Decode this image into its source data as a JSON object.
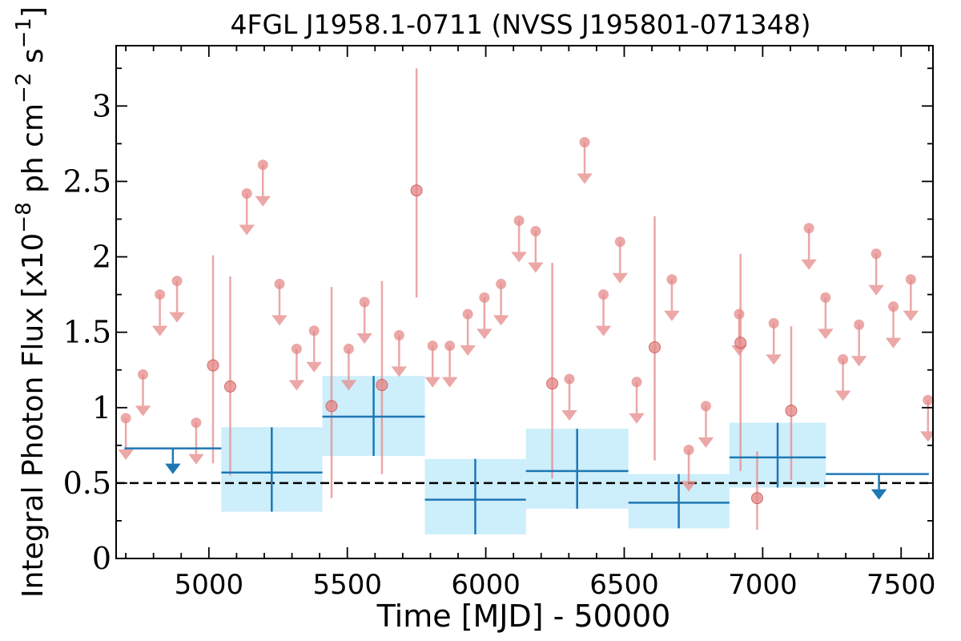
{
  "chart_data": {
    "type": "scatter",
    "title": "4FGL J1958.1-0711 (NVSS J195801-071348)",
    "xlabel": "Time [MJD] - 50000",
    "ylabel_main": "Integral Photon Flux [x10",
    "ylabel_exp1": "−8",
    "ylabel_mid": " ph cm",
    "ylabel_exp2": "−2",
    "ylabel_mid2": " s",
    "ylabel_exp3": "−1",
    "ylabel_end": "]",
    "xlim": [
      4665,
      7615
    ],
    "ylim": [
      0,
      3.4
    ],
    "x_ticks": [
      5000,
      5500,
      6000,
      6500,
      7000,
      7500
    ],
    "y_ticks": [
      0,
      0.5,
      1,
      1.5,
      2,
      2.5,
      3
    ],
    "y_tick_labels": [
      "0",
      "0.5",
      "1",
      "1.5",
      "2",
      "2.5",
      "3"
    ],
    "reference_line_y": 0.5,
    "colors": {
      "short_bins": "#e58a8a",
      "long_bins": "#1f77b4",
      "long_bin_box": "#cdeefb",
      "reference_line": "#000000"
    },
    "series": [
      {
        "kind": "upper_limits_short",
        "points": [
          {
            "x": 4700,
            "y": 0.93
          },
          {
            "x": 4762,
            "y": 1.22
          },
          {
            "x": 4823,
            "y": 1.75
          },
          {
            "x": 4885,
            "y": 1.84
          },
          {
            "x": 4954,
            "y": 0.9
          },
          {
            "x": 5137,
            "y": 2.42
          },
          {
            "x": 5195,
            "y": 2.61
          },
          {
            "x": 5255,
            "y": 1.82
          },
          {
            "x": 5317,
            "y": 1.39
          },
          {
            "x": 5380,
            "y": 1.51
          },
          {
            "x": 5505,
            "y": 1.39
          },
          {
            "x": 5562,
            "y": 1.7
          },
          {
            "x": 5687,
            "y": 1.48
          },
          {
            "x": 5808,
            "y": 1.41
          },
          {
            "x": 5870,
            "y": 1.41
          },
          {
            "x": 5935,
            "y": 1.62
          },
          {
            "x": 5995,
            "y": 1.73
          },
          {
            "x": 6055,
            "y": 1.82
          },
          {
            "x": 6120,
            "y": 2.24
          },
          {
            "x": 6180,
            "y": 2.17
          },
          {
            "x": 6302,
            "y": 1.19
          },
          {
            "x": 6357,
            "y": 2.76
          },
          {
            "x": 6425,
            "y": 1.75
          },
          {
            "x": 6485,
            "y": 2.1
          },
          {
            "x": 6545,
            "y": 1.17
          },
          {
            "x": 6672,
            "y": 1.85
          },
          {
            "x": 6733,
            "y": 0.72
          },
          {
            "x": 6795,
            "y": 1.01
          },
          {
            "x": 6915,
            "y": 1.62
          },
          {
            "x": 7040,
            "y": 1.56
          },
          {
            "x": 7167,
            "y": 2.19
          },
          {
            "x": 7227,
            "y": 1.73
          },
          {
            "x": 7290,
            "y": 1.32
          },
          {
            "x": 7348,
            "y": 1.55
          },
          {
            "x": 7410,
            "y": 2.02
          },
          {
            "x": 7472,
            "y": 1.67
          },
          {
            "x": 7535,
            "y": 1.85
          },
          {
            "x": 7597,
            "y": 1.05
          }
        ]
      },
      {
        "kind": "detections_short",
        "points": [
          {
            "x": 5015,
            "y": 1.28,
            "low": 0.63,
            "high": 2.01
          },
          {
            "x": 5077,
            "y": 1.14,
            "low": 0.55,
            "high": 1.87
          },
          {
            "x": 5443,
            "y": 1.01,
            "low": 0.4,
            "high": 1.8
          },
          {
            "x": 5625,
            "y": 1.15,
            "low": 0.56,
            "high": 1.84
          },
          {
            "x": 5750,
            "y": 2.44,
            "low": 1.73,
            "high": 3.25
          },
          {
            "x": 6240,
            "y": 1.16,
            "low": 0.53,
            "high": 1.96
          },
          {
            "x": 6610,
            "y": 1.4,
            "low": 0.65,
            "high": 2.27
          },
          {
            "x": 6980,
            "y": 0.4,
            "low": 0.19,
            "high": 0.71
          },
          {
            "x": 6920,
            "y": 1.43,
            "low": 0.58,
            "high": 2.02
          },
          {
            "x": 7103,
            "y": 0.98,
            "low": 0.52,
            "high": 1.54
          }
        ]
      },
      {
        "kind": "upper_limits_long",
        "points": [
          {
            "x0": 4695,
            "x1": 5045,
            "y": 0.73,
            "arrow_x": 4870
          },
          {
            "x0": 7228,
            "x1": 7600,
            "y": 0.56,
            "arrow_x": 7420
          }
        ]
      },
      {
        "kind": "detections_long",
        "points": [
          {
            "x0": 5045,
            "x1": 5410,
            "x": 5227,
            "y": 0.57,
            "low": 0.31,
            "high": 0.87
          },
          {
            "x0": 5410,
            "x1": 5780,
            "x": 5595,
            "y": 0.94,
            "low": 0.68,
            "high": 1.21
          },
          {
            "x0": 5780,
            "x1": 6145,
            "x": 5962,
            "y": 0.39,
            "low": 0.16,
            "high": 0.66
          },
          {
            "x0": 6145,
            "x1": 6515,
            "x": 6330,
            "y": 0.58,
            "low": 0.33,
            "high": 0.86
          },
          {
            "x0": 6515,
            "x1": 6880,
            "x": 6697,
            "y": 0.37,
            "low": 0.2,
            "high": 0.56
          },
          {
            "x0": 6880,
            "x1": 7228,
            "x": 7054,
            "y": 0.67,
            "low": 0.47,
            "high": 0.9
          }
        ]
      }
    ]
  }
}
